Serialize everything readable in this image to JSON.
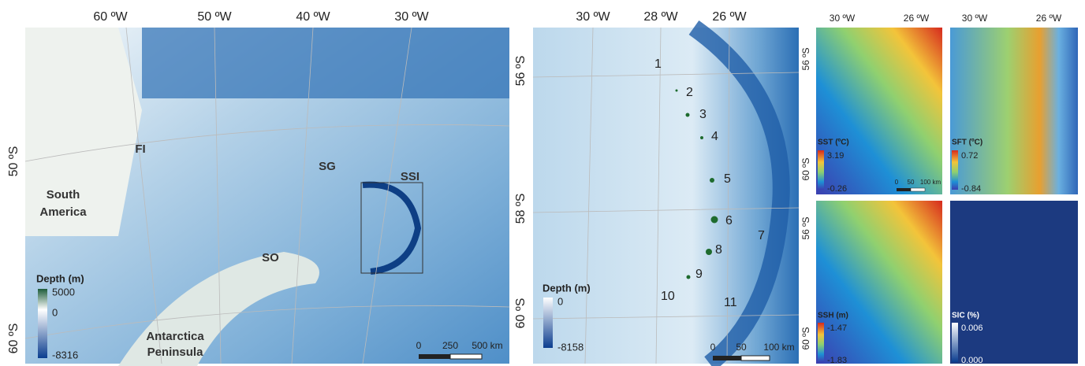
{
  "map_a": {
    "lon_labels": [
      "60 ºW",
      "50 ºW",
      "40 ºW",
      "30 ºW"
    ],
    "lat_labels": [
      "50 ºS",
      "60 ºS"
    ],
    "places": {
      "fi": "FI",
      "sg": "SG",
      "ssi": "SSI",
      "so": "SO",
      "south_america": [
        "South",
        "America"
      ],
      "antarctica": [
        "Antarctica",
        "Peninsula"
      ]
    },
    "legend": {
      "title": "Depth (m)",
      "max": "5000",
      "mid": "0",
      "min": "-8316"
    },
    "scale": [
      "0",
      "250",
      "500 km"
    ]
  },
  "map_b": {
    "lon_labels": [
      "30 ºW",
      "28 ºW",
      "26 ºW"
    ],
    "lat_labels": [
      "56 ºS",
      "58 ºS",
      "60 ºS"
    ],
    "sites": [
      "1",
      "2",
      "3",
      "4",
      "5",
      "6",
      "7",
      "8",
      "9",
      "10",
      "11"
    ],
    "legend": {
      "title": "Depth (m)",
      "max": "0",
      "min": "-8158"
    },
    "scale": [
      "0",
      "50",
      "100 km"
    ]
  },
  "small_maps": {
    "lon_labels": [
      "30 ºW",
      "26 ºW"
    ],
    "lat_labels": [
      "56 ºS",
      "60 ºS"
    ],
    "sst": {
      "title": "SST (ºC)",
      "max": "3.19",
      "min": "-0.26",
      "scale": [
        "0",
        "50",
        "100 km"
      ]
    },
    "sft": {
      "title": "SFT (ºC)",
      "max": "0.72",
      "min": "-0.84"
    },
    "ssh": {
      "title": "SSH (m)",
      "max": "-1.47",
      "min": "-1.83"
    },
    "sic": {
      "title": "SIC (%)",
      "max": "0.006",
      "min": "0.000"
    }
  }
}
